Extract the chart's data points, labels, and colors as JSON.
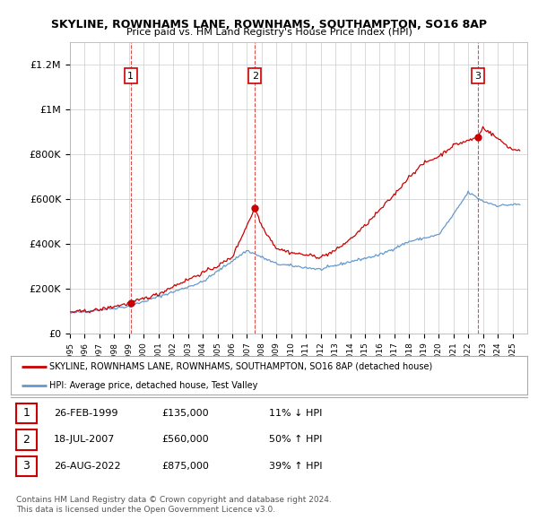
{
  "title": "SKYLINE, ROWNHAMS LANE, ROWNHAMS, SOUTHAMPTON, SO16 8AP",
  "subtitle": "Price paid vs. HM Land Registry's House Price Index (HPI)",
  "ylabel_ticks": [
    "£0",
    "£200K",
    "£400K",
    "£600K",
    "£800K",
    "£1M",
    "£1.2M"
  ],
  "ytick_values": [
    0,
    200000,
    400000,
    600000,
    800000,
    1000000,
    1200000
  ],
  "ylim": [
    0,
    1300000
  ],
  "xlim_start": 1995,
  "xlim_end": 2026,
  "purchase_color": "#cc0000",
  "hpi_color": "#6699cc",
  "vline_color": "#cc0000",
  "grid_color": "#cccccc",
  "purchases": [
    {
      "date_num": 1999.12,
      "price": 135000,
      "label": "1"
    },
    {
      "date_num": 2007.54,
      "price": 560000,
      "label": "2"
    },
    {
      "date_num": 2022.65,
      "price": 875000,
      "label": "3"
    }
  ],
  "legend_line1": "SKYLINE, ROWNHAMS LANE, ROWNHAMS, SOUTHAMPTON, SO16 8AP (detached house)",
  "legend_line2": "HPI: Average price, detached house, Test Valley",
  "table_rows": [
    {
      "num": "1",
      "date": "26-FEB-1999",
      "price": "£135,000",
      "hpi": "11% ↓ HPI"
    },
    {
      "num": "2",
      "date": "18-JUL-2007",
      "price": "£560,000",
      "hpi": "50% ↑ HPI"
    },
    {
      "num": "3",
      "date": "26-AUG-2022",
      "price": "£875,000",
      "hpi": "39% ↑ HPI"
    }
  ],
  "footer1": "Contains HM Land Registry data © Crown copyright and database right 2024.",
  "footer2": "This data is licensed under the Open Government Licence v3.0.",
  "background_color": "#ffffff",
  "plot_bg_color": "#ffffff",
  "hpi_key_years": [
    1995,
    1997,
    1999,
    2002,
    2004,
    2007,
    2008,
    2009,
    2012,
    2014,
    2016,
    2018,
    2020,
    2021,
    2022,
    2023,
    2024,
    2025
  ],
  "hpi_key_prices": [
    90000,
    105000,
    120000,
    185000,
    230000,
    370000,
    340000,
    310000,
    285000,
    320000,
    350000,
    410000,
    440000,
    530000,
    630000,
    590000,
    570000,
    575000
  ],
  "prop_key_years": [
    1995,
    1996,
    1997,
    1998,
    1999.12,
    2000,
    2001,
    2002,
    2003,
    2004,
    2005,
    2006,
    2007.54,
    2008,
    2009,
    2010,
    2011,
    2012,
    2013,
    2014,
    2015,
    2016,
    2017,
    2018,
    2019,
    2020,
    2021,
    2022.65,
    2023,
    2024,
    2025
  ],
  "prop_key_prices": [
    95000,
    98000,
    105000,
    120000,
    135000,
    155000,
    175000,
    210000,
    240000,
    270000,
    300000,
    340000,
    560000,
    480000,
    380000,
    360000,
    350000,
    340000,
    370000,
    420000,
    480000,
    550000,
    620000,
    700000,
    760000,
    790000,
    840000,
    875000,
    920000,
    870000,
    820000
  ]
}
